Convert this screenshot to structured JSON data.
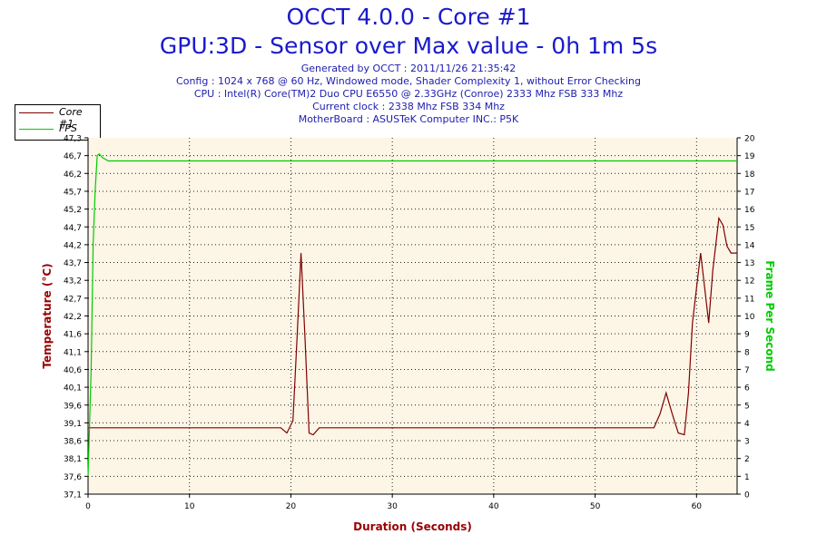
{
  "header": {
    "title_line1": "OCCT 4.0.0 - Core #1",
    "title_line2": "GPU:3D - Sensor over Max value - 0h 1m 5s",
    "info_lines": [
      "Generated by OCCT : 2011/11/26 21:35:42",
      "Config : 1024 x 768 @ 60 Hz, Windowed mode, Shader Complexity 1, without Error Checking",
      "CPU : Intel(R) Core(TM)2 Duo CPU E6550 @ 2.33GHz (Conroe) 2333 Mhz FSB 333 Mhz",
      "Current clock : 2338 Mhz FSB 334 Mhz",
      "MotherBoard : ASUSTeK Computer INC.: P5K"
    ]
  },
  "colors": {
    "temp": "#800000",
    "fps": "#00cc00",
    "plot_bg": "#fdf5e6",
    "grid": "#222222",
    "axis_title": "#990000"
  },
  "chart_data": {
    "type": "line",
    "xlabel": "Duration (Seconds)",
    "ylabel_left": "Temperature (°C)",
    "ylabel_right": "Frame Per Second",
    "xlim": [
      0,
      64
    ],
    "ylim_left": [
      37.1,
      47.3
    ],
    "ylim_right": [
      0,
      20
    ],
    "x_ticks": [
      0,
      10,
      20,
      30,
      40,
      50,
      60
    ],
    "y_left_ticks": [
      "37,1",
      "37,6",
      "38,1",
      "38,6",
      "39,1",
      "39,6",
      "40,1",
      "40,6",
      "41,1",
      "41,6",
      "42,2",
      "42,7",
      "43,2",
      "43,7",
      "44,2",
      "44,7",
      "45,2",
      "45,7",
      "46,2",
      "46,7",
      "47,3"
    ],
    "y_right_ticks": [
      0,
      1,
      2,
      3,
      4,
      5,
      6,
      7,
      8,
      9,
      10,
      11,
      12,
      13,
      14,
      15,
      16,
      17,
      18,
      19,
      20
    ],
    "grid": true,
    "legend_position": "top-left outside",
    "series": [
      {
        "name": "Core #1",
        "axis": "left",
        "x": [
          0,
          19,
          19.6,
          20.2,
          20.6,
          21,
          21.4,
          21.8,
          22.2,
          22.8,
          23,
          55.8,
          56.4,
          57,
          57.6,
          58.2,
          58.8,
          59.2,
          59.6,
          60.4,
          60.8,
          61.2,
          61.6,
          62.2,
          62.6,
          63,
          63.4,
          64
        ],
        "y": [
          39.0,
          39.0,
          38.85,
          39.2,
          41.5,
          44.0,
          41.5,
          38.85,
          38.8,
          39.0,
          39.0,
          39.0,
          39.4,
          40.0,
          39.4,
          38.85,
          38.8,
          40.0,
          42.0,
          44.0,
          43.0,
          42.0,
          43.5,
          45.0,
          44.8,
          44.2,
          44.0,
          44.0
        ]
      },
      {
        "name": "FPS",
        "axis": "right",
        "x": [
          0,
          0.3,
          0.5,
          0.7,
          0.9,
          1.1,
          1.4,
          2,
          64
        ],
        "y": [
          1,
          7,
          14,
          17,
          19,
          19.1,
          18.9,
          18.7,
          18.7
        ]
      }
    ]
  }
}
